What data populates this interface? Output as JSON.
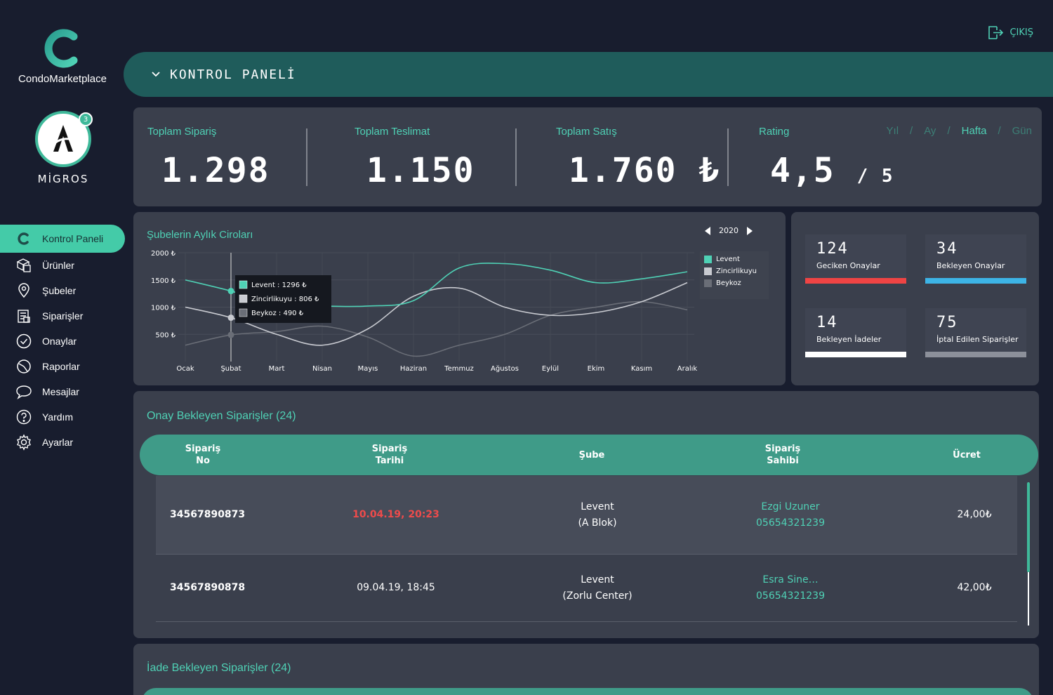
{
  "brand": {
    "name": "CondoMarketplace"
  },
  "store": {
    "name": "MİGROS",
    "badge": "3"
  },
  "logout_label": "ÇIKIŞ",
  "header": {
    "title": "KONTROL PANELİ"
  },
  "sidebar": {
    "items": [
      {
        "label": "Kontrol Paneli",
        "icon": "condo-c-icon"
      },
      {
        "label": "Ürünler",
        "icon": "boxes-icon"
      },
      {
        "label": "Şubeler",
        "icon": "location-pin-icon"
      },
      {
        "label": "Siparişler",
        "icon": "orders-icon"
      },
      {
        "label": "Onaylar",
        "icon": "check-circle-icon"
      },
      {
        "label": "Raporlar",
        "icon": "reports-icon"
      },
      {
        "label": "Mesajlar",
        "icon": "chat-bubble-icon"
      },
      {
        "label": "Yardım",
        "icon": "help-icon"
      },
      {
        "label": "Ayarlar",
        "icon": "gear-icon"
      }
    ]
  },
  "stats": {
    "orders": {
      "label": "Toplam Sipariş",
      "value": "1.298"
    },
    "deliveries": {
      "label": "Toplam Teslimat",
      "value": "1.150"
    },
    "sales": {
      "label": "Toplam Satış",
      "value": "1.760 ₺"
    },
    "rating": {
      "label": "Rating",
      "value": "4,5",
      "suffix": "/ 5"
    },
    "periods": [
      "Yıl",
      "Ay",
      "Hafta",
      "Gün"
    ],
    "selected_period": "Hafta"
  },
  "chart": {
    "title": "Şubelerin Aylık Ciroları",
    "year": "2020",
    "tooltip": {
      "lines": [
        "Levent : 1296 ₺",
        "Zincirlikuyu : 806 ₺",
        "Beykoz : 490 ₺"
      ]
    }
  },
  "chart_data": {
    "type": "line",
    "title": "Şubelerin Aylık Ciroları",
    "x": [
      "Ocak",
      "Şubat",
      "Mart",
      "Nisan",
      "Mayıs",
      "Haziran",
      "Temmuz",
      "Ağustos",
      "Eylül",
      "Ekim",
      "Kasım",
      "Aralık"
    ],
    "y_ticks": [
      "500 ₺",
      "1000 ₺",
      "1500 ₺",
      "2000 ₺"
    ],
    "ylim": [
      0,
      2000
    ],
    "series": [
      {
        "name": "Levent",
        "color": "#4fd1b5",
        "values": [
          1500,
          1296,
          1050,
          1020,
          1020,
          1120,
          1720,
          1800,
          1680,
          1450,
          1520,
          1650
        ]
      },
      {
        "name": "Zincirlikuyu",
        "color": "#c9cbd1",
        "values": [
          1000,
          806,
          500,
          300,
          600,
          1200,
          1350,
          1000,
          850,
          900,
          1100,
          1450
        ]
      },
      {
        "name": "Beykoz",
        "color": "#6a6e77",
        "values": [
          300,
          490,
          550,
          650,
          450,
          100,
          300,
          500,
          850,
          1000,
          1100,
          950
        ]
      }
    ],
    "legend": [
      "Levent",
      "Zincirlikuyu",
      "Beykoz"
    ]
  },
  "status": [
    {
      "value": "124",
      "label": "Geciken Onaylar",
      "color": "#ef4444"
    },
    {
      "value": "34",
      "label": "Bekleyen Onaylar",
      "color": "#3db4e6"
    },
    {
      "value": "14",
      "label": "Bekleyen İadeler",
      "color": "#ffffff"
    },
    {
      "value": "75",
      "label": "İptal Edilen Siparişler",
      "color": "#8c909a"
    }
  ],
  "pending": {
    "title": "Onay Bekleyen Siparişler (24)",
    "headers": [
      "Sipariş No",
      "Sipariş Tarihi",
      "Şube",
      "Sipariş Sahibi",
      "Ücret"
    ],
    "headers_line1": [
      "Sipariş",
      "Sipariş",
      "Şube",
      "Sipariş",
      "Ücret"
    ],
    "headers_line2": [
      "No",
      "Tarihi",
      "",
      "Sahibi",
      ""
    ],
    "rows": [
      {
        "no": "34567890873",
        "date": "10.04.19, 20:23",
        "branch": "Levent",
        "branch_sub": "(A Blok)",
        "owner": "Ezgi Uzuner",
        "phone": "05654321239",
        "price": "24,00₺"
      },
      {
        "no": "34567890878",
        "date": "09.04.19, 18:45",
        "branch": "Levent",
        "branch_sub": "(Zorlu Center)",
        "owner": "Esra Sine…",
        "phone": "05654321239",
        "price": "42,00₺"
      }
    ]
  },
  "returns": {
    "title": "İade Bekleyen Siparişler (24)"
  }
}
